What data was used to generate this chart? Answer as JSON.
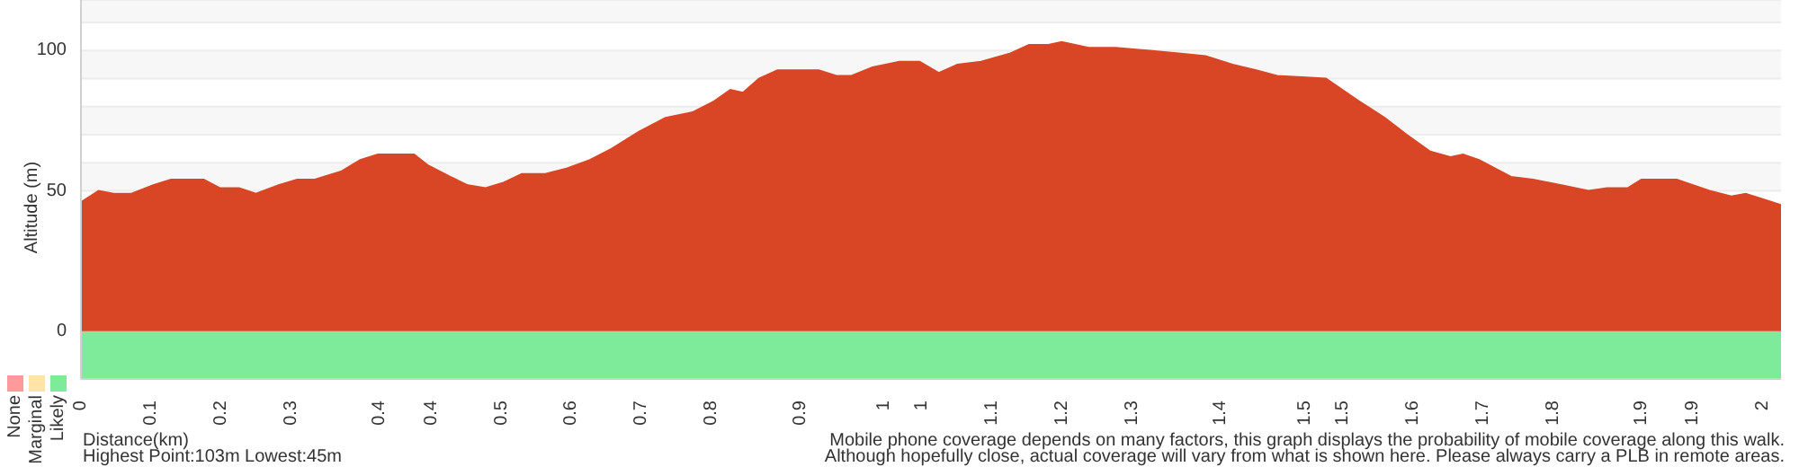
{
  "chart_data": {
    "type": "area",
    "ylabel": "Altitude (m)",
    "x": [
      0,
      0.021,
      0.039,
      0.06,
      0.086,
      0.107,
      0.146,
      0.165,
      0.188,
      0.208,
      0.235,
      0.257,
      0.278,
      0.31,
      0.332,
      0.353,
      0.396,
      0.413,
      0.439,
      0.46,
      0.481,
      0.503,
      0.524,
      0.552,
      0.578,
      0.605,
      0.631,
      0.663,
      0.695,
      0.727,
      0.753,
      0.772,
      0.787,
      0.806,
      0.828,
      0.877,
      0.898,
      0.916,
      0.941,
      0.973,
      0.997,
      1.02,
      1.042,
      1.07,
      1.105,
      1.127,
      1.15,
      1.166,
      1.198,
      1.23,
      1.268,
      1.305,
      1.337,
      1.369,
      1.397,
      1.422,
      1.48,
      1.519,
      1.55,
      1.576,
      1.604,
      1.628,
      1.643,
      1.662,
      1.7,
      1.726,
      1.76,
      1.792,
      1.814,
      1.839,
      1.855,
      1.897,
      1.936,
      1.962,
      1.979,
      2.0,
      2.021
    ],
    "series": [
      {
        "color": "#d94626",
        "values": [
          46,
          50,
          49,
          49,
          52,
          54,
          54,
          51,
          51,
          49,
          52,
          54,
          54,
          57,
          61,
          63,
          63,
          59,
          55,
          52,
          51,
          53,
          56,
          56,
          58,
          61,
          65,
          71,
          76,
          78,
          82,
          86,
          85,
          90,
          93,
          93,
          91,
          91,
          94,
          96,
          96,
          92,
          95,
          96,
          99,
          102,
          102,
          103,
          101,
          101,
          100,
          99,
          98,
          95,
          93,
          91,
          90,
          82,
          76,
          70,
          64,
          62,
          63,
          61,
          55,
          54,
          52,
          50,
          51,
          51,
          54,
          54,
          50,
          48,
          49,
          47,
          45
        ]
      }
    ],
    "xlim": [
      0,
      2.021
    ],
    "xticks": [
      {
        "value": 0,
        "label": "0"
      },
      {
        "value": 0.0833,
        "label": "0.1"
      },
      {
        "value": 0.1667,
        "label": "0.2"
      },
      {
        "value": 0.25,
        "label": "0.3"
      },
      {
        "value": 0.355,
        "label": "0.4"
      },
      {
        "value": 0.4167,
        "label": "0.4"
      },
      {
        "value": 0.5,
        "label": "0.5"
      },
      {
        "value": 0.5833,
        "label": "0.6"
      },
      {
        "value": 0.6667,
        "label": "0.7"
      },
      {
        "value": 0.75,
        "label": "0.8"
      },
      {
        "value": 0.855,
        "label": "0.9"
      },
      {
        "value": 0.955,
        "label": "1"
      },
      {
        "value": 1,
        "label": "1"
      },
      {
        "value": 1.0833,
        "label": "1.1"
      },
      {
        "value": 1.1667,
        "label": "1.2"
      },
      {
        "value": 1.25,
        "label": "1.3"
      },
      {
        "value": 1.355,
        "label": "1.4"
      },
      {
        "value": 1.455,
        "label": "1.5"
      },
      {
        "value": 1.5,
        "label": "1.5"
      },
      {
        "value": 1.5833,
        "label": "1.6"
      },
      {
        "value": 1.6667,
        "label": "1.7"
      },
      {
        "value": 1.75,
        "label": "1.8"
      },
      {
        "value": 1.855,
        "label": "1.9"
      },
      {
        "value": 1.9167,
        "label": "1.9"
      },
      {
        "value": 2,
        "label": "2"
      }
    ],
    "ylim": [
      -17,
      118
    ],
    "yticks": [
      0,
      50,
      {
        "value": 60,
        "label": null
      },
      {
        "value": 70,
        "label": null
      },
      {
        "value": 80,
        "label": null
      },
      {
        "value": 90,
        "label": null
      },
      100,
      {
        "value": 110,
        "label": null
      }
    ],
    "grid": "y",
    "bands": [
      {
        "axis": "x",
        "from": 0,
        "to": 2.021,
        "label": "Likely",
        "color": "#7deb9a"
      }
    ],
    "annotations": [
      "None",
      "Marginal",
      "Distance(km)",
      "Highest Point:103m Lowest:45m",
      "Mobile phone coverage depends on many factors, this graph displays the probability of mobile coverage along this walk.",
      "Although hopefully close, actual coverage will vary from what is shown here. Please always carry a PLB in remote areas."
    ]
  }
}
